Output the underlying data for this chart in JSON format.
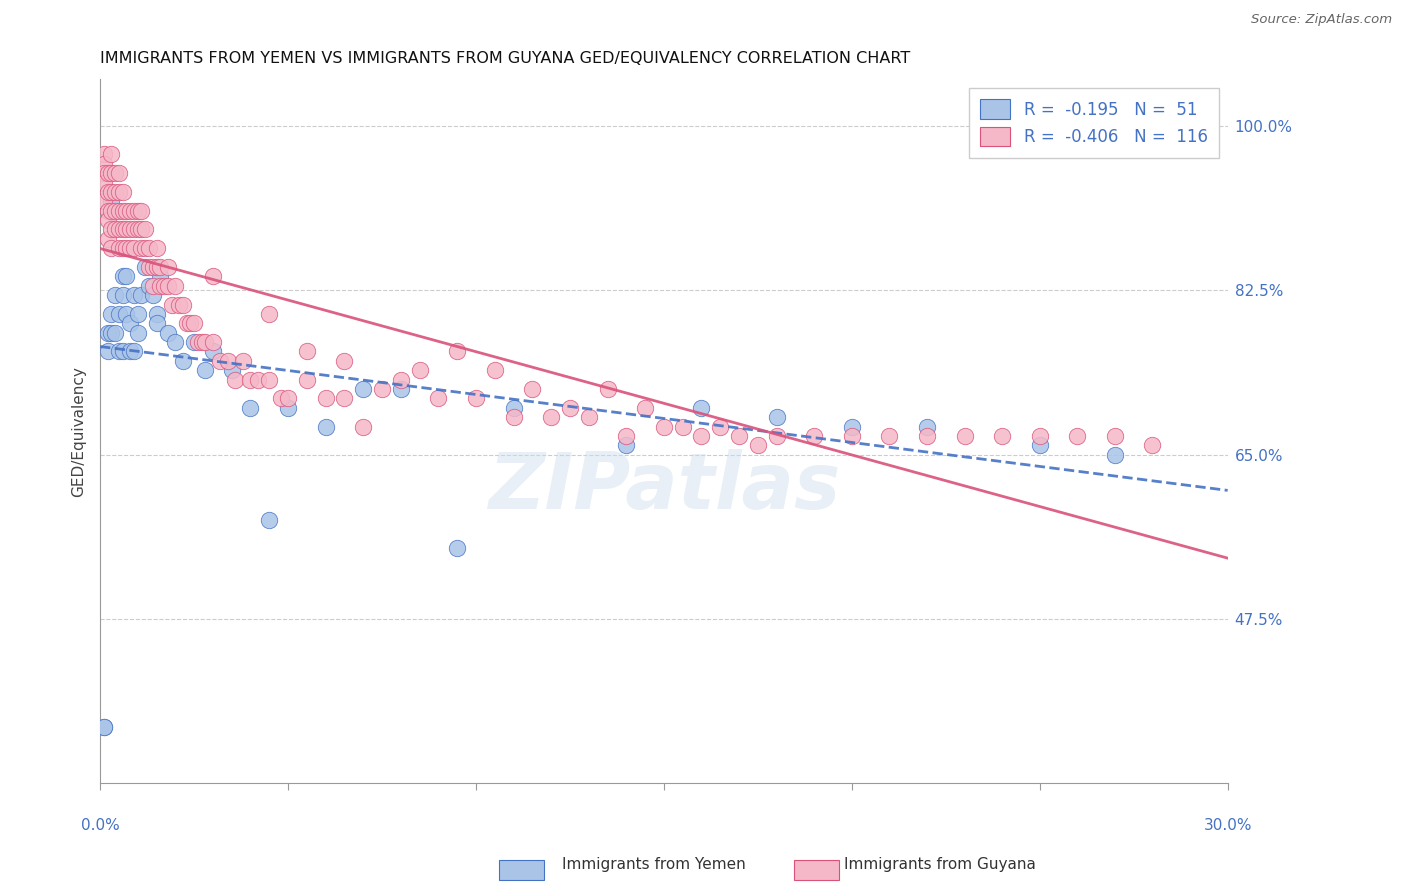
{
  "title": "IMMIGRANTS FROM YEMEN VS IMMIGRANTS FROM GUYANA GED/EQUIVALENCY CORRELATION CHART",
  "source": "Source: ZipAtlas.com",
  "ylabel": "GED/Equivalency",
  "ytick_labels": [
    "100.0%",
    "82.5%",
    "65.0%",
    "47.5%"
  ],
  "ytick_values": [
    1.0,
    0.825,
    0.65,
    0.475
  ],
  "xmin": 0.0,
  "xmax": 0.3,
  "ymin": 0.3,
  "ymax": 1.05,
  "legend_r_yemen": "-0.195",
  "legend_n_yemen": "51",
  "legend_r_guyana": "-0.406",
  "legend_n_guyana": "116",
  "color_yemen": "#aac4e8",
  "color_guyana": "#f5b8c8",
  "line_color_yemen": "#4472C4",
  "line_color_guyana": "#d9527a",
  "watermark": "ZIPatlas",
  "yemen_x": [
    0.001,
    0.001,
    0.002,
    0.002,
    0.003,
    0.003,
    0.003,
    0.004,
    0.004,
    0.005,
    0.005,
    0.006,
    0.006,
    0.006,
    0.007,
    0.007,
    0.008,
    0.008,
    0.009,
    0.009,
    0.01,
    0.01,
    0.011,
    0.012,
    0.013,
    0.014,
    0.015,
    0.015,
    0.016,
    0.018,
    0.02,
    0.022,
    0.025,
    0.028,
    0.03,
    0.035,
    0.04,
    0.045,
    0.05,
    0.06,
    0.07,
    0.08,
    0.095,
    0.11,
    0.14,
    0.16,
    0.18,
    0.2,
    0.22,
    0.25,
    0.27
  ],
  "yemen_y": [
    0.36,
    0.36,
    0.76,
    0.78,
    0.8,
    0.78,
    0.92,
    0.82,
    0.78,
    0.8,
    0.76,
    0.84,
    0.82,
    0.76,
    0.8,
    0.84,
    0.79,
    0.76,
    0.82,
    0.76,
    0.8,
    0.78,
    0.82,
    0.85,
    0.83,
    0.82,
    0.8,
    0.79,
    0.84,
    0.78,
    0.77,
    0.75,
    0.77,
    0.74,
    0.76,
    0.74,
    0.7,
    0.58,
    0.7,
    0.68,
    0.72,
    0.72,
    0.55,
    0.7,
    0.66,
    0.7,
    0.69,
    0.68,
    0.68,
    0.66,
    0.65
  ],
  "guyana_x": [
    0.001,
    0.001,
    0.001,
    0.001,
    0.001,
    0.002,
    0.002,
    0.002,
    0.002,
    0.002,
    0.003,
    0.003,
    0.003,
    0.003,
    0.003,
    0.003,
    0.004,
    0.004,
    0.004,
    0.004,
    0.005,
    0.005,
    0.005,
    0.005,
    0.005,
    0.006,
    0.006,
    0.006,
    0.006,
    0.007,
    0.007,
    0.007,
    0.008,
    0.008,
    0.008,
    0.009,
    0.009,
    0.009,
    0.01,
    0.01,
    0.011,
    0.011,
    0.011,
    0.012,
    0.012,
    0.013,
    0.013,
    0.014,
    0.014,
    0.015,
    0.015,
    0.016,
    0.016,
    0.017,
    0.018,
    0.018,
    0.019,
    0.02,
    0.021,
    0.022,
    0.023,
    0.024,
    0.025,
    0.026,
    0.027,
    0.028,
    0.03,
    0.032,
    0.034,
    0.036,
    0.038,
    0.04,
    0.042,
    0.045,
    0.048,
    0.05,
    0.055,
    0.06,
    0.065,
    0.07,
    0.08,
    0.09,
    0.1,
    0.11,
    0.12,
    0.13,
    0.14,
    0.15,
    0.16,
    0.17,
    0.18,
    0.19,
    0.2,
    0.21,
    0.22,
    0.23,
    0.24,
    0.25,
    0.26,
    0.27,
    0.03,
    0.045,
    0.055,
    0.065,
    0.075,
    0.085,
    0.095,
    0.105,
    0.115,
    0.125,
    0.135,
    0.145,
    0.155,
    0.165,
    0.175,
    0.28
  ],
  "guyana_y": [
    0.97,
    0.96,
    0.95,
    0.94,
    0.92,
    0.95,
    0.93,
    0.91,
    0.9,
    0.88,
    0.97,
    0.95,
    0.93,
    0.91,
    0.89,
    0.87,
    0.95,
    0.93,
    0.91,
    0.89,
    0.93,
    0.91,
    0.89,
    0.87,
    0.95,
    0.93,
    0.91,
    0.89,
    0.87,
    0.91,
    0.89,
    0.87,
    0.91,
    0.89,
    0.87,
    0.91,
    0.89,
    0.87,
    0.91,
    0.89,
    0.91,
    0.89,
    0.87,
    0.89,
    0.87,
    0.87,
    0.85,
    0.85,
    0.83,
    0.87,
    0.85,
    0.85,
    0.83,
    0.83,
    0.85,
    0.83,
    0.81,
    0.83,
    0.81,
    0.81,
    0.79,
    0.79,
    0.79,
    0.77,
    0.77,
    0.77,
    0.77,
    0.75,
    0.75,
    0.73,
    0.75,
    0.73,
    0.73,
    0.73,
    0.71,
    0.71,
    0.73,
    0.71,
    0.71,
    0.68,
    0.73,
    0.71,
    0.71,
    0.69,
    0.69,
    0.69,
    0.67,
    0.68,
    0.67,
    0.67,
    0.67,
    0.67,
    0.67,
    0.67,
    0.67,
    0.67,
    0.67,
    0.67,
    0.67,
    0.67,
    0.84,
    0.8,
    0.76,
    0.75,
    0.72,
    0.74,
    0.76,
    0.74,
    0.72,
    0.7,
    0.72,
    0.7,
    0.68,
    0.68,
    0.66,
    0.66
  ]
}
